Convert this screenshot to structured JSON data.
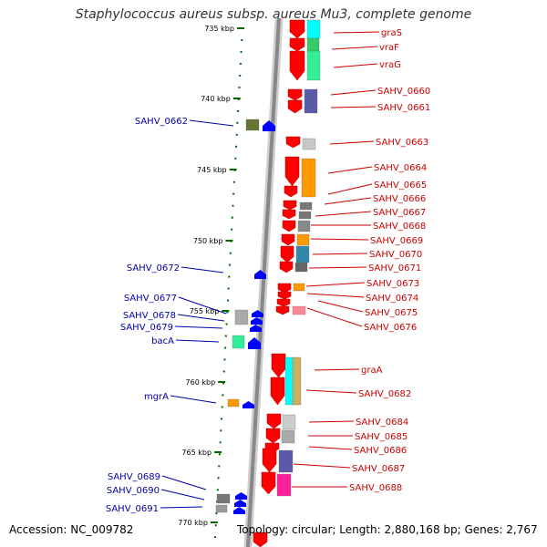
{
  "title": "Staphylococcus aureus subsp. aureus Mu3, complete genome",
  "footer": {
    "accession": "Accession: NC_009782",
    "topology": "Topology: circular; Length: 2,880,168 bp; Genes: 2,767"
  },
  "colors": {
    "forward_gene": "#ff0000",
    "reverse_gene": "#0000ff",
    "forward_label": "#cc0000",
    "reverse_label": "#0000aa",
    "backbone": "#888888",
    "tick": "#006600"
  },
  "ticks": [
    {
      "label": "735 kbp"
    },
    {
      "label": "740 kbp"
    },
    {
      "label": "745 kbp"
    },
    {
      "label": "750 kbp"
    },
    {
      "label": "755 kbp"
    },
    {
      "label": "760 kbp"
    },
    {
      "label": "765 kbp"
    },
    {
      "label": "770 kbp"
    }
  ],
  "forward_genes": [
    {
      "name": "graS"
    },
    {
      "name": "vraF"
    },
    {
      "name": "vraG"
    },
    {
      "name": "SAHV_0660"
    },
    {
      "name": "SAHV_0661"
    },
    {
      "name": "SAHV_0663"
    },
    {
      "name": "SAHV_0664"
    },
    {
      "name": "SAHV_0665"
    },
    {
      "name": "SAHV_0666"
    },
    {
      "name": "SAHV_0667"
    },
    {
      "name": "SAHV_0668"
    },
    {
      "name": "SAHV_0669"
    },
    {
      "name": "SAHV_0670"
    },
    {
      "name": "SAHV_0671"
    },
    {
      "name": "SAHV_0673"
    },
    {
      "name": "SAHV_0674"
    },
    {
      "name": "SAHV_0675"
    },
    {
      "name": "SAHV_0676"
    },
    {
      "name": "graA"
    },
    {
      "name": "SAHV_0682"
    },
    {
      "name": "SAHV_0684"
    },
    {
      "name": "SAHV_0685"
    },
    {
      "name": "SAHV_0686"
    },
    {
      "name": "SAHV_0687"
    },
    {
      "name": "SAHV_0688"
    }
  ],
  "reverse_genes": [
    {
      "name": "SAHV_0662"
    },
    {
      "name": "SAHV_0672"
    },
    {
      "name": "SAHV_0677"
    },
    {
      "name": "SAHV_0678"
    },
    {
      "name": "SAHV_0679"
    },
    {
      "name": "bacA"
    },
    {
      "name": "mgrA"
    },
    {
      "name": "SAHV_0689"
    },
    {
      "name": "SAHV_0690"
    },
    {
      "name": "SAHV_0691"
    }
  ]
}
